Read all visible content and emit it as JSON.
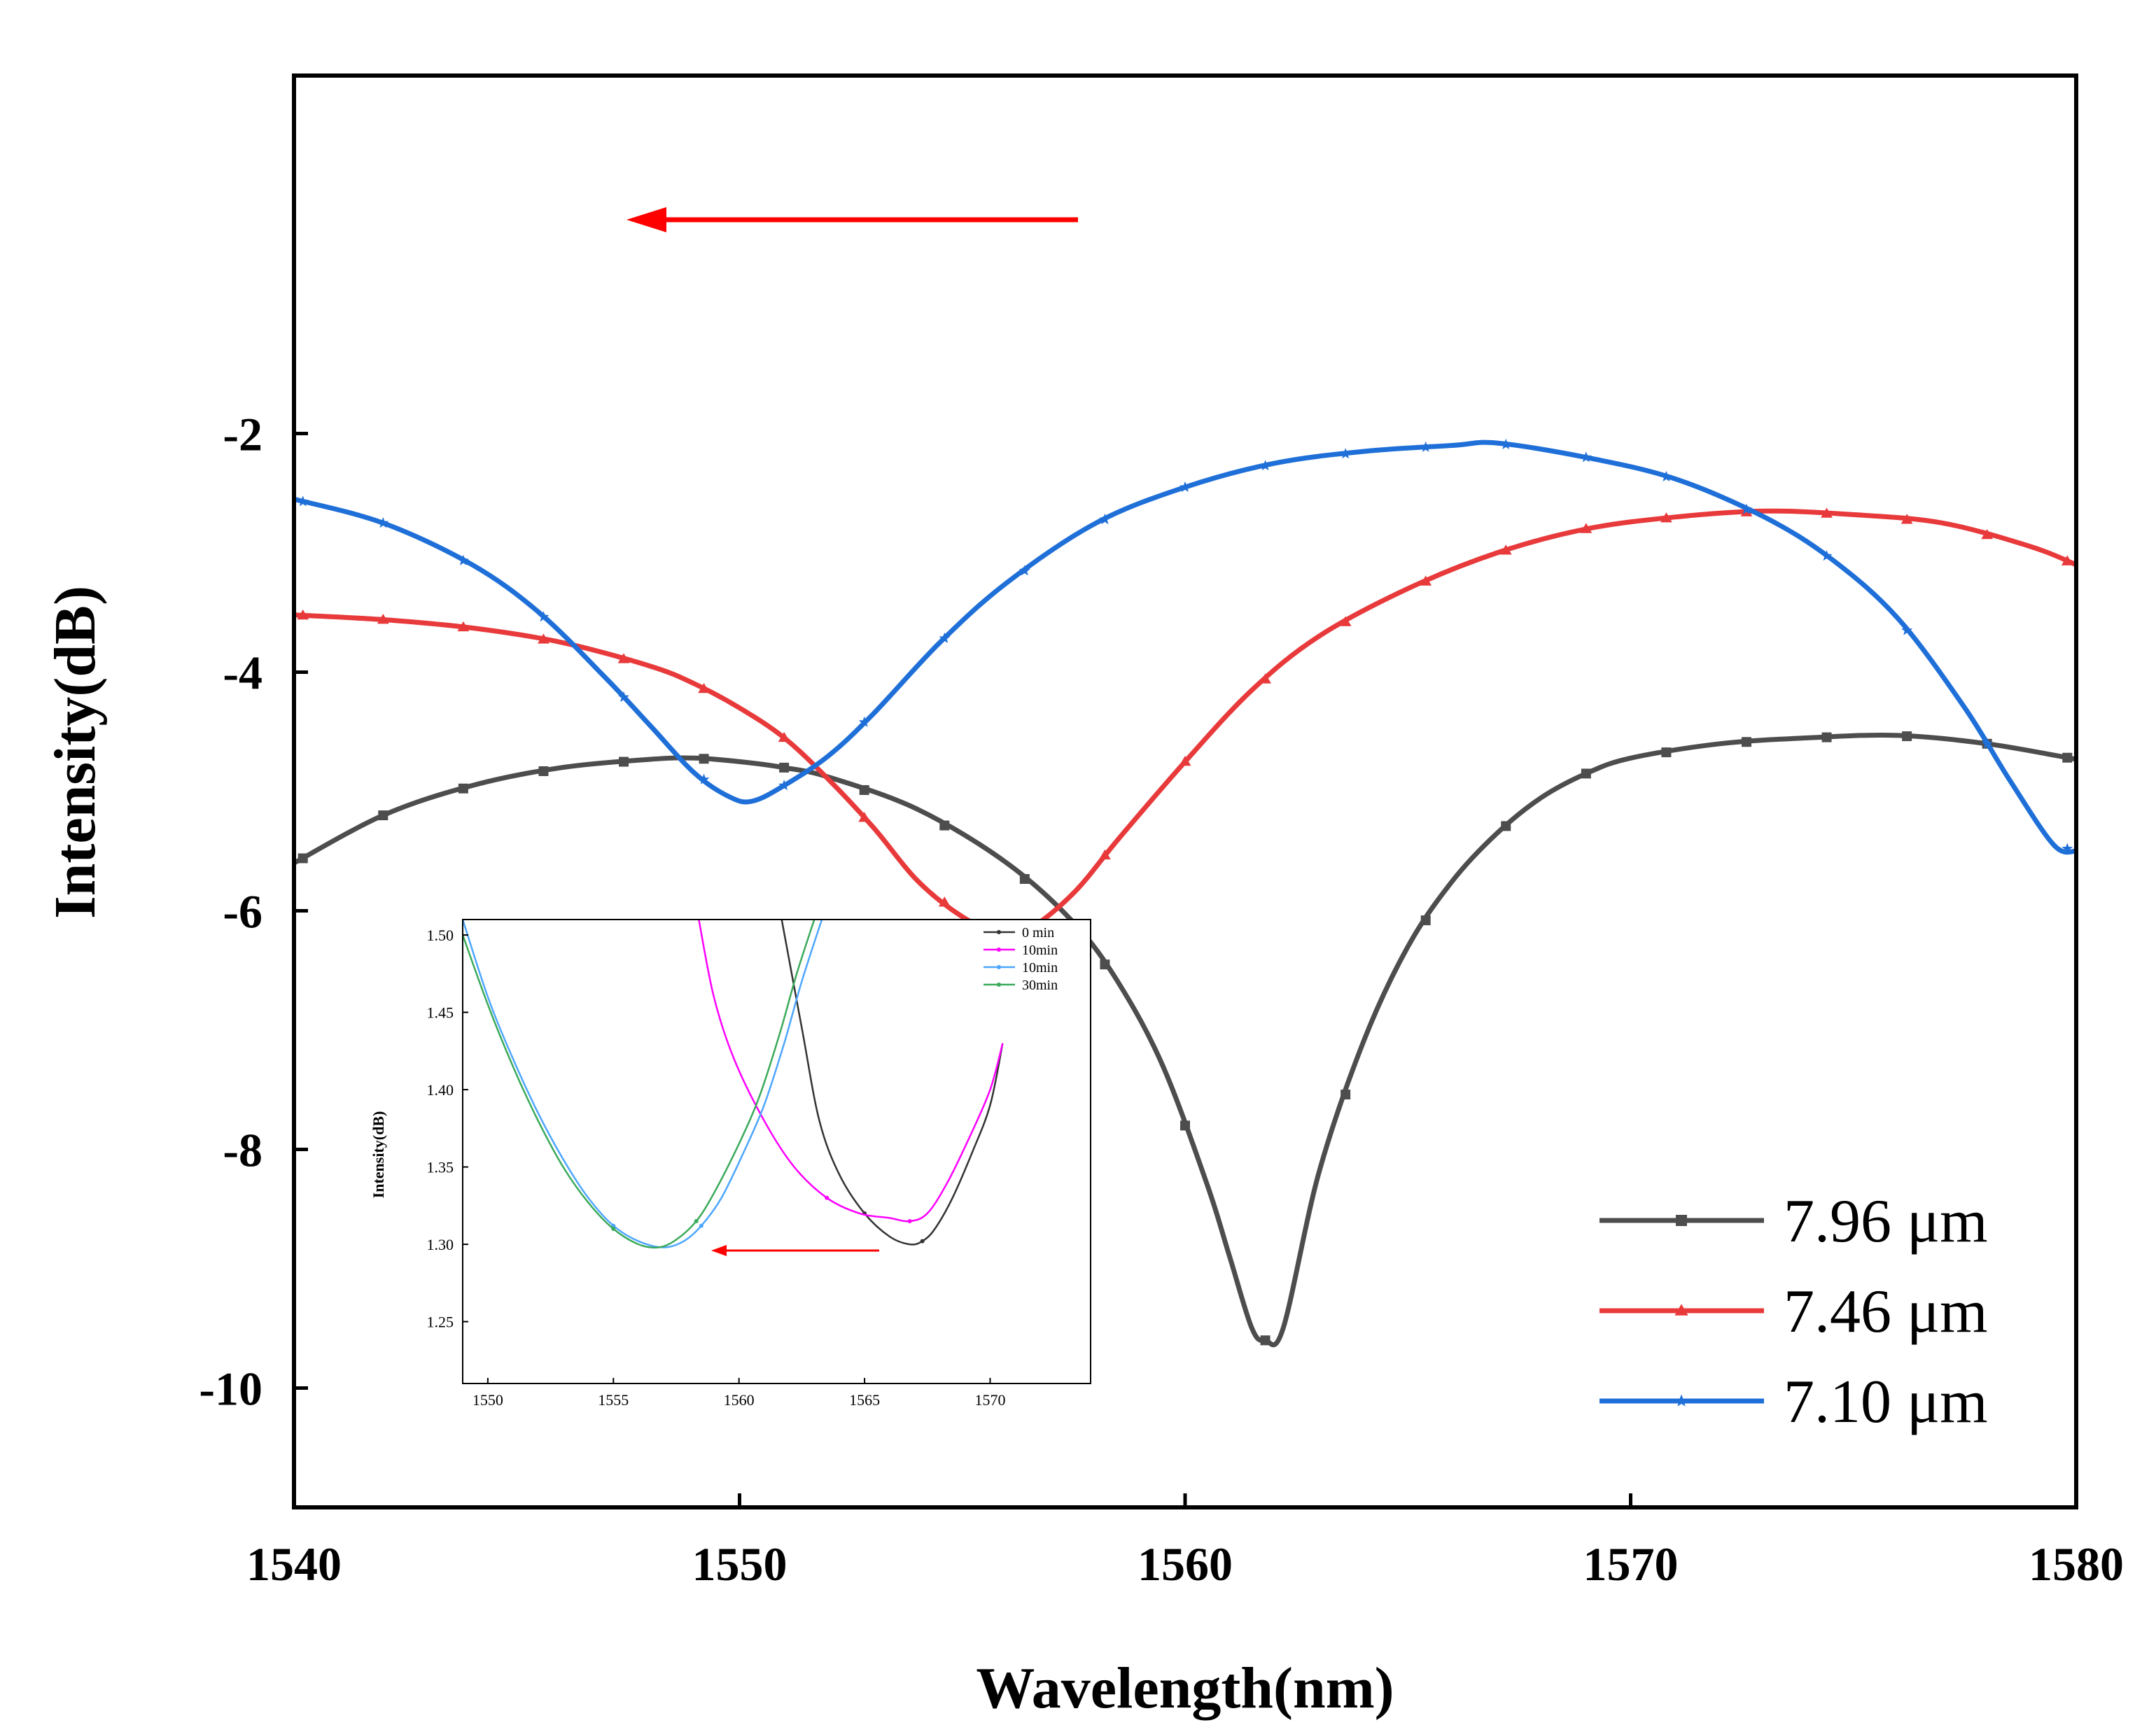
{
  "chart_data": [
    {
      "type": "line",
      "role": "main",
      "xlabel": "Wavelength(nm)",
      "ylabel": "Intensity(dB)",
      "xlim": [
        1540,
        1580
      ],
      "ylim": [
        -11,
        1
      ],
      "xticks": [
        1540,
        1550,
        1560,
        1570,
        1580
      ],
      "xtick_labels": [
        "1540",
        "1550",
        "1560",
        "1570",
        "1580"
      ],
      "yticks": [
        -10,
        -8,
        -6,
        -4,
        -2
      ],
      "ytick_labels": [
        "-10",
        "-8",
        "-6",
        "-4",
        "-2"
      ],
      "legend_position": "bottom-right",
      "annotation": "red arrow pointing left (blue shift)",
      "series": [
        {
          "name": "7.96 μm",
          "color": "#4d4d4d",
          "marker": "square",
          "x": [
            1540,
            1542,
            1544,
            1546,
            1548,
            1549,
            1550,
            1551,
            1552,
            1554,
            1556,
            1557.5,
            1558.5,
            1559.5,
            1560.5,
            1561,
            1561.5,
            1561.8,
            1562.2,
            1563,
            1564,
            1565,
            1566,
            1567,
            1568,
            1569,
            1570,
            1572,
            1574,
            1576,
            1578,
            1580
          ],
          "y": [
            -5.6,
            -5.2,
            -4.95,
            -4.8,
            -4.73,
            -4.72,
            -4.75,
            -4.8,
            -4.88,
            -5.15,
            -5.6,
            -6.1,
            -6.6,
            -7.3,
            -8.3,
            -8.9,
            -9.5,
            -9.6,
            -9.5,
            -8.2,
            -7.1,
            -6.3,
            -5.75,
            -5.35,
            -5.05,
            -4.85,
            -4.72,
            -4.6,
            -4.55,
            -4.53,
            -4.6,
            -4.73
          ]
        },
        {
          "name": "7.46 μm",
          "color": "#e8393b",
          "marker": "triangle",
          "x": [
            1540,
            1542,
            1544,
            1546,
            1548,
            1549,
            1550,
            1551,
            1552,
            1553,
            1554,
            1555,
            1555.8,
            1556.5,
            1557.5,
            1558.5,
            1560,
            1561.5,
            1563,
            1565,
            1567,
            1569,
            1571,
            1573,
            1575,
            1577,
            1579,
            1580
          ],
          "y": [
            -3.52,
            -3.56,
            -3.63,
            -3.75,
            -3.95,
            -4.1,
            -4.3,
            -4.55,
            -4.9,
            -5.3,
            -5.75,
            -6.05,
            -6.18,
            -6.15,
            -5.85,
            -5.4,
            -4.75,
            -4.15,
            -3.7,
            -3.3,
            -3.0,
            -2.8,
            -2.7,
            -2.65,
            -2.68,
            -2.75,
            -2.95,
            -3.1
          ]
        },
        {
          "name": "7.10 μm",
          "color": "#1f6fd8",
          "marker": "star",
          "x": [
            1540,
            1542,
            1544,
            1545.5,
            1547,
            1548,
            1549,
            1549.8,
            1550.3,
            1551,
            1552,
            1553,
            1554.5,
            1556,
            1558,
            1560,
            1562,
            1564,
            1566,
            1567,
            1569,
            1571,
            1573,
            1574.5,
            1576,
            1577.5,
            1578.5,
            1579.5,
            1580
          ],
          "y": [
            -2.55,
            -2.75,
            -3.1,
            -3.5,
            -4.05,
            -4.45,
            -4.85,
            -5.05,
            -5.08,
            -4.95,
            -4.7,
            -4.35,
            -3.75,
            -3.25,
            -2.75,
            -2.45,
            -2.25,
            -2.15,
            -2.1,
            -2.08,
            -2.2,
            -2.38,
            -2.7,
            -3.05,
            -3.55,
            -4.3,
            -4.9,
            -5.45,
            -5.5
          ]
        }
      ]
    },
    {
      "type": "line",
      "role": "inset",
      "xlabel": "",
      "ylabel": "Intensity(dB)",
      "xlim": [
        1549,
        1574
      ],
      "ylim": [
        1.21,
        1.51
      ],
      "xticks": [
        1550,
        1555,
        1560,
        1565,
        1570
      ],
      "xtick_labels": [
        "1550",
        "1555",
        "1560",
        "1565",
        "1570"
      ],
      "yticks": [
        1.25,
        1.3,
        1.35,
        1.4,
        1.45,
        1.5
      ],
      "ytick_labels": [
        "1.25",
        "1.30",
        "1.35",
        "1.40",
        "1.45",
        "1.50"
      ],
      "legend_position": "top-right",
      "annotation": "red arrow pointing left",
      "series": [
        {
          "name": "0 min",
          "color": "#333333",
          "x": [
            1561.7,
            1562.5,
            1563.2,
            1564,
            1565,
            1566,
            1566.8,
            1567.3,
            1567.8,
            1568.5,
            1569.3,
            1570,
            1570.5
          ],
          "y": [
            1.51,
            1.44,
            1.38,
            1.345,
            1.32,
            1.305,
            1.3,
            1.302,
            1.31,
            1.33,
            1.36,
            1.39,
            1.43
          ]
        },
        {
          "name": "10min",
          "color": "#ff00ff",
          "x": [
            1558.4,
            1559,
            1559.8,
            1561,
            1562.2,
            1563.5,
            1564.8,
            1566,
            1566.8,
            1567.5,
            1568.3,
            1569.2,
            1570,
            1570.5
          ],
          "y": [
            1.51,
            1.46,
            1.42,
            1.38,
            1.35,
            1.33,
            1.32,
            1.317,
            1.315,
            1.32,
            1.34,
            1.37,
            1.4,
            1.43
          ]
        },
        {
          "name": "10min",
          "color": "#4da6ff",
          "x": [
            1549,
            1550,
            1551,
            1552,
            1553,
            1554,
            1555,
            1556,
            1557,
            1557.8,
            1558.5,
            1559.3,
            1560.2,
            1561,
            1561.8,
            1562.5,
            1563.3
          ],
          "y": [
            1.51,
            1.46,
            1.42,
            1.385,
            1.355,
            1.33,
            1.312,
            1.302,
            1.298,
            1.302,
            1.312,
            1.33,
            1.36,
            1.39,
            1.43,
            1.47,
            1.51
          ]
        },
        {
          "name": "30min",
          "color": "#3aaa5a",
          "x": [
            1549,
            1550,
            1551,
            1552,
            1553,
            1554,
            1555,
            1556,
            1556.8,
            1557.5,
            1558.3,
            1559,
            1560,
            1560.8,
            1561.6,
            1562.3,
            1563
          ],
          "y": [
            1.5,
            1.455,
            1.415,
            1.38,
            1.35,
            1.327,
            1.31,
            1.3,
            1.298,
            1.303,
            1.315,
            1.333,
            1.365,
            1.395,
            1.435,
            1.475,
            1.51
          ]
        }
      ]
    }
  ]
}
